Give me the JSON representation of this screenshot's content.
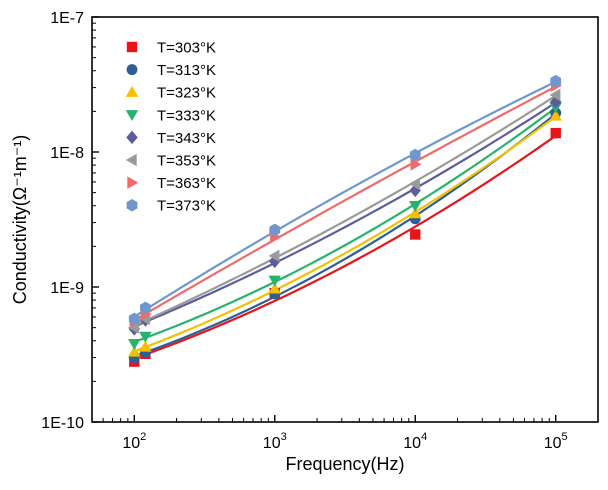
{
  "chart_data": {
    "type": "scatter",
    "title": "",
    "xlabel": "Frequency(Hz)",
    "ylabel": "Conductivity(Ω⁻¹m⁻¹)",
    "xscale": "log",
    "yscale": "log",
    "xlim": [
      50,
      200000
    ],
    "ylim": [
      1e-10,
      1e-07
    ],
    "x_ticks": [
      {
        "value": 100,
        "base": "10",
        "exp": "2"
      },
      {
        "value": 1000,
        "base": "10",
        "exp": "3"
      },
      {
        "value": 10000,
        "base": "10",
        "exp": "4"
      },
      {
        "value": 100000,
        "base": "10",
        "exp": "5"
      }
    ],
    "y_ticks": [
      {
        "value": 1e-10,
        "label": "1E-10"
      },
      {
        "value": 1e-09,
        "label": "1E-9"
      },
      {
        "value": 1e-08,
        "label": "1E-8"
      },
      {
        "value": 1e-07,
        "label": "1E-7"
      }
    ],
    "grid": false,
    "legend_position": "top-left",
    "x": [
      100,
      120,
      1000,
      10000,
      100000
    ],
    "series": [
      {
        "name": "T=303°K",
        "marker": "square",
        "color": "#e8141a",
        "values": [
          2.8e-10,
          3.2e-10,
          9e-10,
          2.45e-09,
          1.38e-08
        ]
      },
      {
        "name": "T=313°K",
        "marker": "circle",
        "color": "#2d5f96",
        "values": [
          3e-10,
          3.3e-10,
          8.9e-10,
          3.2e-09,
          1.95e-08
        ]
      },
      {
        "name": "T=323°K",
        "marker": "triangle-up",
        "color": "#f5c000",
        "values": [
          3.3e-10,
          3.6e-10,
          9.7e-10,
          3.5e-09,
          1.85e-08
        ]
      },
      {
        "name": "T=333°K",
        "marker": "triangle-down",
        "color": "#26b36e",
        "values": [
          3.8e-10,
          4.3e-10,
          1.12e-09,
          4e-09,
          2.15e-08
        ]
      },
      {
        "name": "T=343°K",
        "marker": "diamond",
        "color": "#5b5e9e",
        "values": [
          4.9e-10,
          5.7e-10,
          1.55e-09,
          5.2e-09,
          2.35e-08
        ]
      },
      {
        "name": "T=353°K",
        "marker": "triangle-left",
        "color": "#9a9a9a",
        "values": [
          5e-10,
          5.8e-10,
          1.7e-09,
          5.8e-09,
          2.65e-08
        ]
      },
      {
        "name": "T=363°K",
        "marker": "triangle-right",
        "color": "#f06a6a",
        "values": [
          5.6e-10,
          6.3e-10,
          2.35e-09,
          8.1e-09,
          3.1e-08
        ]
      },
      {
        "name": "T=373°K",
        "marker": "hexagon",
        "color": "#6f97cc",
        "values": [
          5.8e-10,
          7e-10,
          2.65e-09,
          9.5e-09,
          3.35e-08
        ]
      }
    ]
  }
}
